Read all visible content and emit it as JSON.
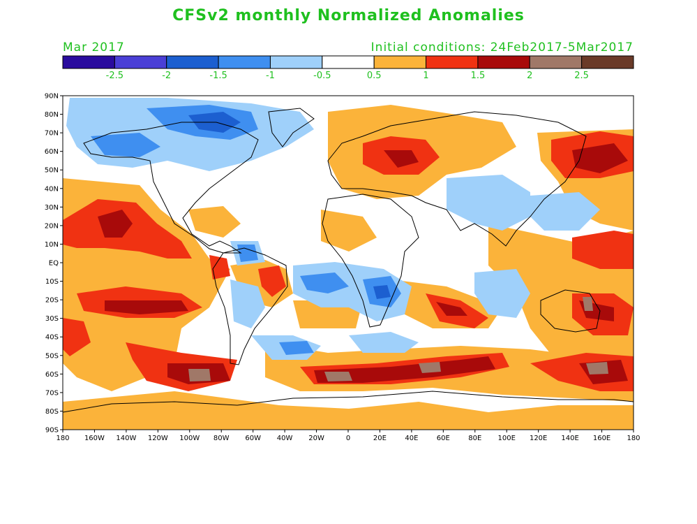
{
  "title": "CFSv2 monthly Normalized Anomalies",
  "forecast_month": "Mar 2017",
  "initial_conditions": "Initial conditions: 24Feb2017-5Mar2017",
  "colorbar": {
    "colors": [
      "#2a0c9e",
      "#4a3fd6",
      "#1c5fd0",
      "#3f8ff0",
      "#9fd0fa",
      "#ffffff",
      "#fbb33a",
      "#f03212",
      "#a80a0a",
      "#a07868",
      "#6a3a28"
    ],
    "labels": [
      "-2.5",
      "-2",
      "-1.5",
      "-1",
      "-0.5",
      "0.5",
      "1",
      "1.5",
      "2",
      "2.5"
    ]
  },
  "map": {
    "lat_labels": [
      "90N",
      "80N",
      "70N",
      "60N",
      "50N",
      "40N",
      "30N",
      "20N",
      "10N",
      "EQ",
      "10S",
      "20S",
      "30S",
      "40S",
      "50S",
      "60S",
      "70S",
      "80S",
      "90S"
    ],
    "lon_labels": [
      "180",
      "160W",
      "140W",
      "120W",
      "100W",
      "80W",
      "60W",
      "40W",
      "20W",
      "0",
      "20E",
      "40E",
      "60E",
      "80E",
      "100E",
      "120E",
      "140E",
      "160E",
      "180"
    ]
  }
}
